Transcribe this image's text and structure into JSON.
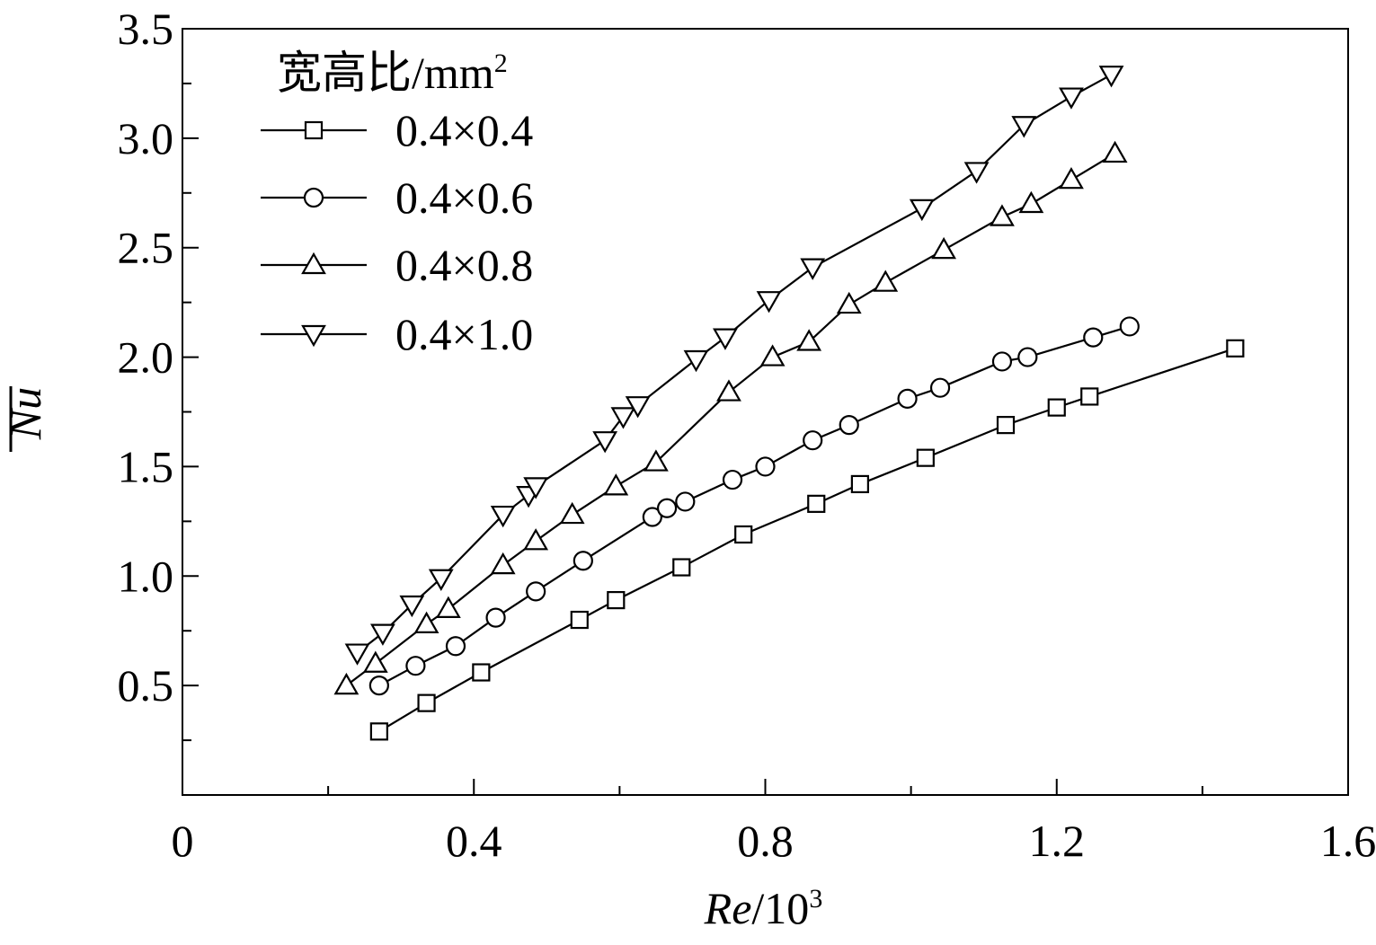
{
  "chart_data": {
    "type": "line",
    "title": "",
    "xlabel": {
      "italic": "Re",
      "plain": "/10",
      "sup": "3"
    },
    "ylabel": "Nu",
    "xlim": [
      0,
      1.6
    ],
    "ylim": [
      0,
      3.5
    ],
    "xticks": [
      0,
      0.4,
      0.8,
      1.2,
      1.6
    ],
    "xtick_labels": [
      "0",
      "0.4",
      "0.8",
      "1.2",
      "1.6"
    ],
    "yticks": [
      0.5,
      1.0,
      1.5,
      2.0,
      2.5,
      3.0,
      3.5
    ],
    "ytick_labels": [
      "0.5",
      "1.0",
      "1.5",
      "2.0",
      "2.5",
      "3.0",
      "3.5"
    ],
    "grid": false,
    "legend": {
      "position": "top-left",
      "title_main": "宽高比/mm",
      "title_sup": "2"
    },
    "series": [
      {
        "name": "0.4×0.4",
        "marker": "square",
        "x": [
          0.27,
          0.335,
          0.41,
          0.545,
          0.595,
          0.685,
          0.77,
          0.87,
          0.93,
          1.02,
          1.13,
          1.2,
          1.245,
          1.445
        ],
        "y": [
          0.29,
          0.42,
          0.56,
          0.8,
          0.89,
          1.04,
          1.19,
          1.33,
          1.42,
          1.54,
          1.69,
          1.77,
          1.82,
          2.04
        ]
      },
      {
        "name": "0.4×0.6",
        "marker": "circle",
        "x": [
          0.27,
          0.32,
          0.375,
          0.43,
          0.485,
          0.55,
          0.645,
          0.665,
          0.69,
          0.755,
          0.8,
          0.865,
          0.915,
          0.995,
          1.04,
          1.125,
          1.16,
          1.25,
          1.3
        ],
        "y": [
          0.5,
          0.59,
          0.68,
          0.81,
          0.93,
          1.07,
          1.27,
          1.31,
          1.34,
          1.44,
          1.5,
          1.62,
          1.69,
          1.81,
          1.86,
          1.98,
          2.0,
          2.09,
          2.14
        ]
      },
      {
        "name": "0.4×0.8",
        "marker": "triangle-up",
        "x": [
          0.225,
          0.265,
          0.335,
          0.365,
          0.44,
          0.485,
          0.535,
          0.595,
          0.65,
          0.75,
          0.81,
          0.86,
          0.915,
          0.965,
          1.045,
          1.125,
          1.165,
          1.22,
          1.28
        ],
        "y": [
          0.5,
          0.6,
          0.78,
          0.85,
          1.05,
          1.16,
          1.28,
          1.41,
          1.52,
          1.84,
          2.0,
          2.07,
          2.24,
          2.34,
          2.49,
          2.64,
          2.7,
          2.81,
          2.93
        ]
      },
      {
        "name": "0.4×1.0",
        "marker": "triangle-down",
        "x": [
          0.24,
          0.275,
          0.315,
          0.355,
          0.44,
          0.475,
          0.485,
          0.58,
          0.605,
          0.625,
          0.705,
          0.745,
          0.805,
          0.865,
          1.015,
          1.09,
          1.155,
          1.22,
          1.275
        ],
        "y": [
          0.65,
          0.74,
          0.87,
          0.99,
          1.28,
          1.37,
          1.41,
          1.62,
          1.73,
          1.78,
          1.99,
          2.09,
          2.26,
          2.41,
          2.68,
          2.85,
          3.06,
          3.19,
          3.29
        ]
      }
    ]
  }
}
